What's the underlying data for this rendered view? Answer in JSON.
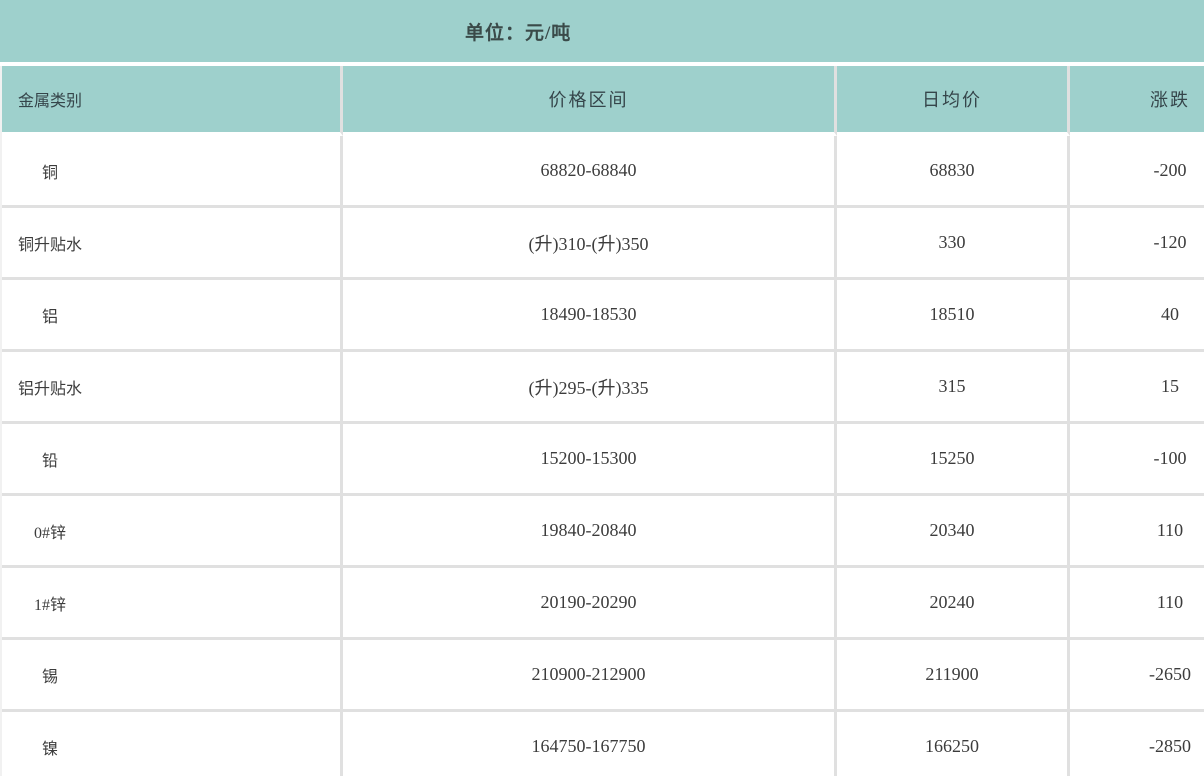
{
  "unit_bar": {
    "label": "单位：元/吨"
  },
  "table": {
    "columns": [
      {
        "key": "metal",
        "label": "金属类别"
      },
      {
        "key": "range",
        "label": "价格区间"
      },
      {
        "key": "avg",
        "label": "日均价"
      },
      {
        "key": "change",
        "label": "涨跌"
      }
    ],
    "rows": [
      {
        "metal": "铜",
        "range": "68820-68840",
        "avg": "68830",
        "change": "-200"
      },
      {
        "metal": "铜升贴水",
        "range": "(升)310-(升)350",
        "avg": "330",
        "change": "-120"
      },
      {
        "metal": "铝",
        "range": "18490-18530",
        "avg": "18510",
        "change": "40"
      },
      {
        "metal": "铝升贴水",
        "range": "(升)295-(升)335",
        "avg": "315",
        "change": "15"
      },
      {
        "metal": "铅",
        "range": "15200-15300",
        "avg": "15250",
        "change": "-100"
      },
      {
        "metal": "0#锌",
        "range": "19840-20840",
        "avg": "20340",
        "change": "110"
      },
      {
        "metal": "1#锌",
        "range": "20190-20290",
        "avg": "20240",
        "change": "110"
      },
      {
        "metal": "锡",
        "range": "210900-212900",
        "avg": "211900",
        "change": "-2650"
      },
      {
        "metal": "镍",
        "range": "164750-167750",
        "avg": "166250",
        "change": "-2850"
      }
    ]
  },
  "chart_data": {
    "type": "table",
    "title": "单位：元/吨",
    "columns": [
      "金属类别",
      "价格区间",
      "日均价",
      "涨跌"
    ],
    "rows": [
      [
        "铜",
        "68820-68840",
        68830,
        -200
      ],
      [
        "铜升贴水",
        "(升)310-(升)350",
        330,
        -120
      ],
      [
        "铝",
        "18490-18530",
        18510,
        40
      ],
      [
        "铝升贴水",
        "(升)295-(升)335",
        315,
        15
      ],
      [
        "铅",
        "15200-15300",
        15250,
        -100
      ],
      [
        "0#锌",
        "19840-20840",
        20340,
        110
      ],
      [
        "1#锌",
        "20190-20290",
        20240,
        110
      ],
      [
        "锡",
        "210900-212900",
        211900,
        -2650
      ],
      [
        "镍",
        "164750-167750",
        166250,
        -2850
      ]
    ]
  },
  "colors": {
    "header_bg": "#9ed0cc",
    "border": "#e0e0e0",
    "text": "#3c3c3c"
  }
}
